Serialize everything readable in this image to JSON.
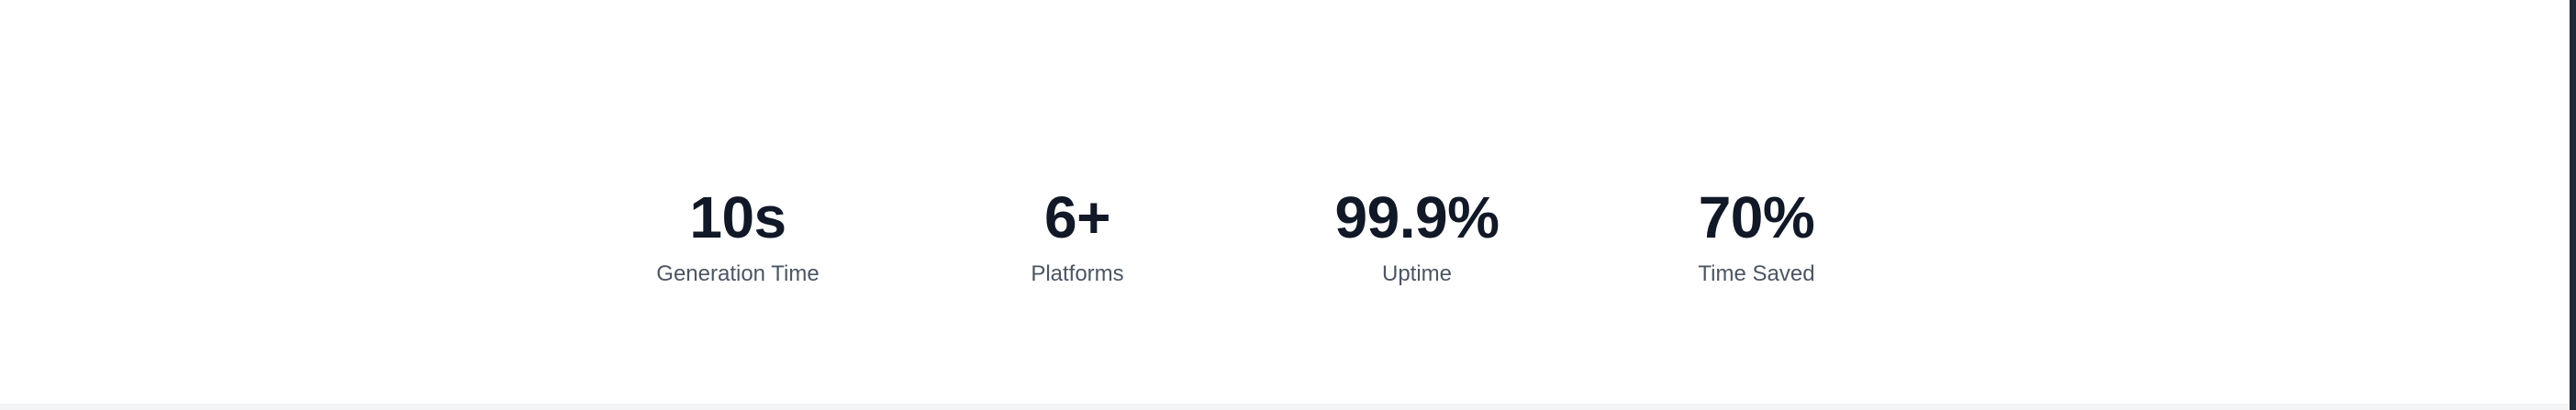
{
  "stats": [
    {
      "value": "10s",
      "label": "Generation Time"
    },
    {
      "value": "6+",
      "label": "Platforms"
    },
    {
      "value": "99.9%",
      "label": "Uptime"
    },
    {
      "value": "70%",
      "label": "Time Saved"
    }
  ],
  "colors": {
    "background": "#ffffff",
    "value_text": "#111827",
    "label_text": "#4b5563",
    "right_edge": "#1f2937",
    "bottom_strip": "#f3f4f6"
  }
}
